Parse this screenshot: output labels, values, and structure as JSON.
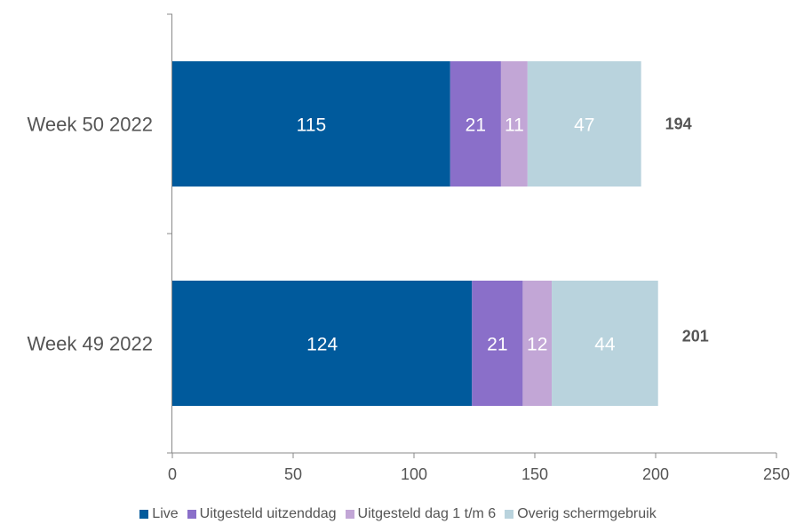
{
  "chart_data": {
    "type": "bar",
    "orientation": "horizontal",
    "stacked": true,
    "categories": [
      "Week 50 2022",
      "Week 49 2022"
    ],
    "series": [
      {
        "name": "Live",
        "values": [
          115,
          124
        ],
        "color": "#005a9c"
      },
      {
        "name": "Uitgesteld uitzenddag",
        "values": [
          21,
          21
        ],
        "color": "#8a6fc9"
      },
      {
        "name": "Uitgesteld dag 1 t/m 6",
        "values": [
          11,
          12
        ],
        "color": "#c2a6d6"
      },
      {
        "name": "Overig schermgebruik",
        "values": [
          47,
          44
        ],
        "color": "#b9d3dd"
      }
    ],
    "totals": [
      194,
      201
    ],
    "xlim": [
      0,
      250
    ],
    "xticks": [
      "0",
      "50",
      "100",
      "150",
      "200",
      "250"
    ],
    "grid": false,
    "legend": "bottom"
  }
}
